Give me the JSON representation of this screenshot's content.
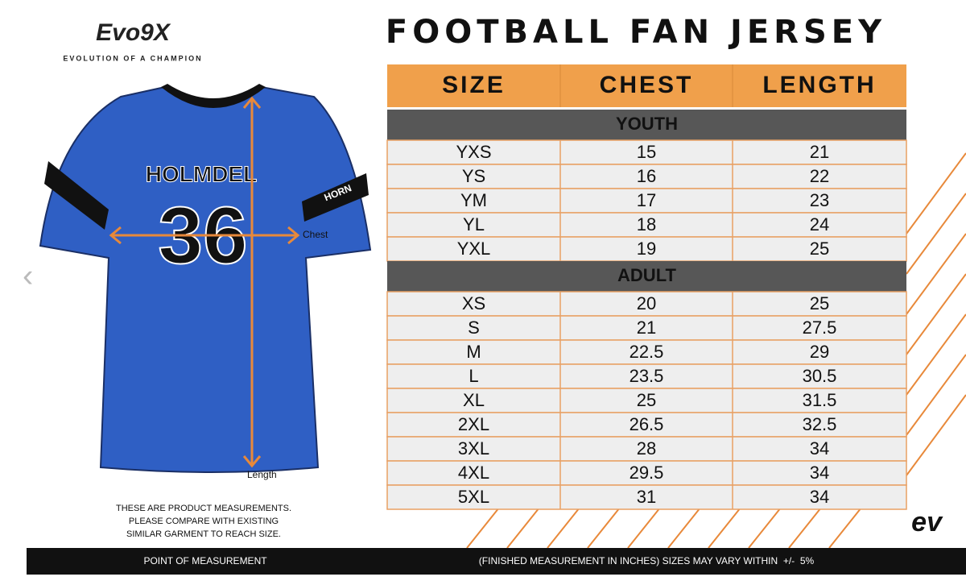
{
  "logo": {
    "brand": "Evo9X",
    "tagline": "EVOLUTION OF A CHAMPION"
  },
  "title": "FOOTBALL FAN JERSEY",
  "jersey": {
    "team": "HOLMDEL",
    "number": "36",
    "sleeve": "HORN",
    "chest_label": "Chest",
    "length_label": "Length"
  },
  "table": {
    "headers": [
      "SIZE",
      "CHEST",
      "LENGTH"
    ],
    "sections": [
      {
        "name": "YOUTH",
        "rows": [
          [
            "YXS",
            15,
            21
          ],
          [
            "YS",
            16,
            22
          ],
          [
            "YM",
            17,
            23
          ],
          [
            "YL",
            18,
            24
          ],
          [
            "YXL",
            19,
            25
          ]
        ]
      },
      {
        "name": "ADULT",
        "rows": [
          [
            "XS",
            20,
            25
          ],
          [
            "S",
            21,
            27.5
          ],
          [
            "M",
            22.5,
            29
          ],
          [
            "L",
            23.5,
            30.5
          ],
          [
            "XL",
            25,
            31.5
          ],
          [
            "2XL",
            26.5,
            32.5
          ],
          [
            "3XL",
            28,
            34
          ],
          [
            "4XL",
            29.5,
            34
          ],
          [
            "5XL",
            31,
            34
          ]
        ]
      }
    ]
  },
  "note": [
    "THESE ARE PRODUCT MEASUREMENTS.",
    "PLEASE COMPARE WITH EXISTING",
    "SIMILAR GARMENT TO REACH SIZE."
  ],
  "footer": {
    "left": "POINT OF MEASUREMENT",
    "right": "(FINISHED MEASUREMENT IN INCHES) SIZES MAY VARY WITHIN  +/-  5%"
  }
}
